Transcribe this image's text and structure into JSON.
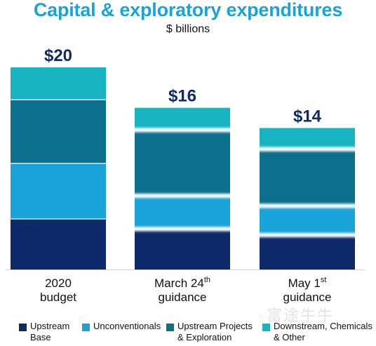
{
  "title": "Capital & exploratory expenditures",
  "subtitle": "$ billions",
  "chart_data": {
    "type": "bar",
    "stacked": true,
    "categories": [
      {
        "line1": "2020",
        "line2": "budget",
        "sup": ""
      },
      {
        "line1": "March 24",
        "line2": "guidance",
        "sup": "th"
      },
      {
        "line1": "May 1",
        "line2": "guidance",
        "sup": "st"
      }
    ],
    "totals": [
      "$20",
      "$16",
      "$14"
    ],
    "series": [
      {
        "name_line1": "Upstream",
        "name_line2": "Base",
        "color": "#0e2a6b",
        "values": [
          5.0,
          4.0,
          3.4
        ]
      },
      {
        "name_line1": "Unconventionals",
        "name_line2": "",
        "color": "#1aa3d9",
        "values": [
          5.5,
          3.3,
          2.9
        ]
      },
      {
        "name_line1": "Upstream Projects",
        "name_line2": "& Exploration",
        "color": "#0c6f8c",
        "values": [
          6.3,
          6.5,
          5.6
        ]
      },
      {
        "name_line1": "Downstream, Chemicals",
        "name_line2": "& Other",
        "color": "#17b3c2",
        "values": [
          3.2,
          2.2,
          2.1
        ]
      }
    ],
    "ylim": [
      0,
      22
    ],
    "grid": false,
    "legend_position": "bottom"
  },
  "watermark": "富途牛牛"
}
